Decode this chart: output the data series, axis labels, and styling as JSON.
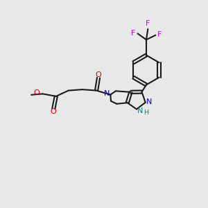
{
  "bg_color": "#e8e8e8",
  "bond_color": "#1a1a1a",
  "n_color": "#0000bb",
  "o_color": "#cc0000",
  "f_color": "#cc00cc",
  "nh_color": "#008080",
  "figsize": [
    3.0,
    3.0
  ],
  "dpi": 100,
  "lw": 1.5,
  "fs": 8.0,
  "xlim": [
    0,
    10
  ],
  "ylim": [
    0,
    10
  ]
}
